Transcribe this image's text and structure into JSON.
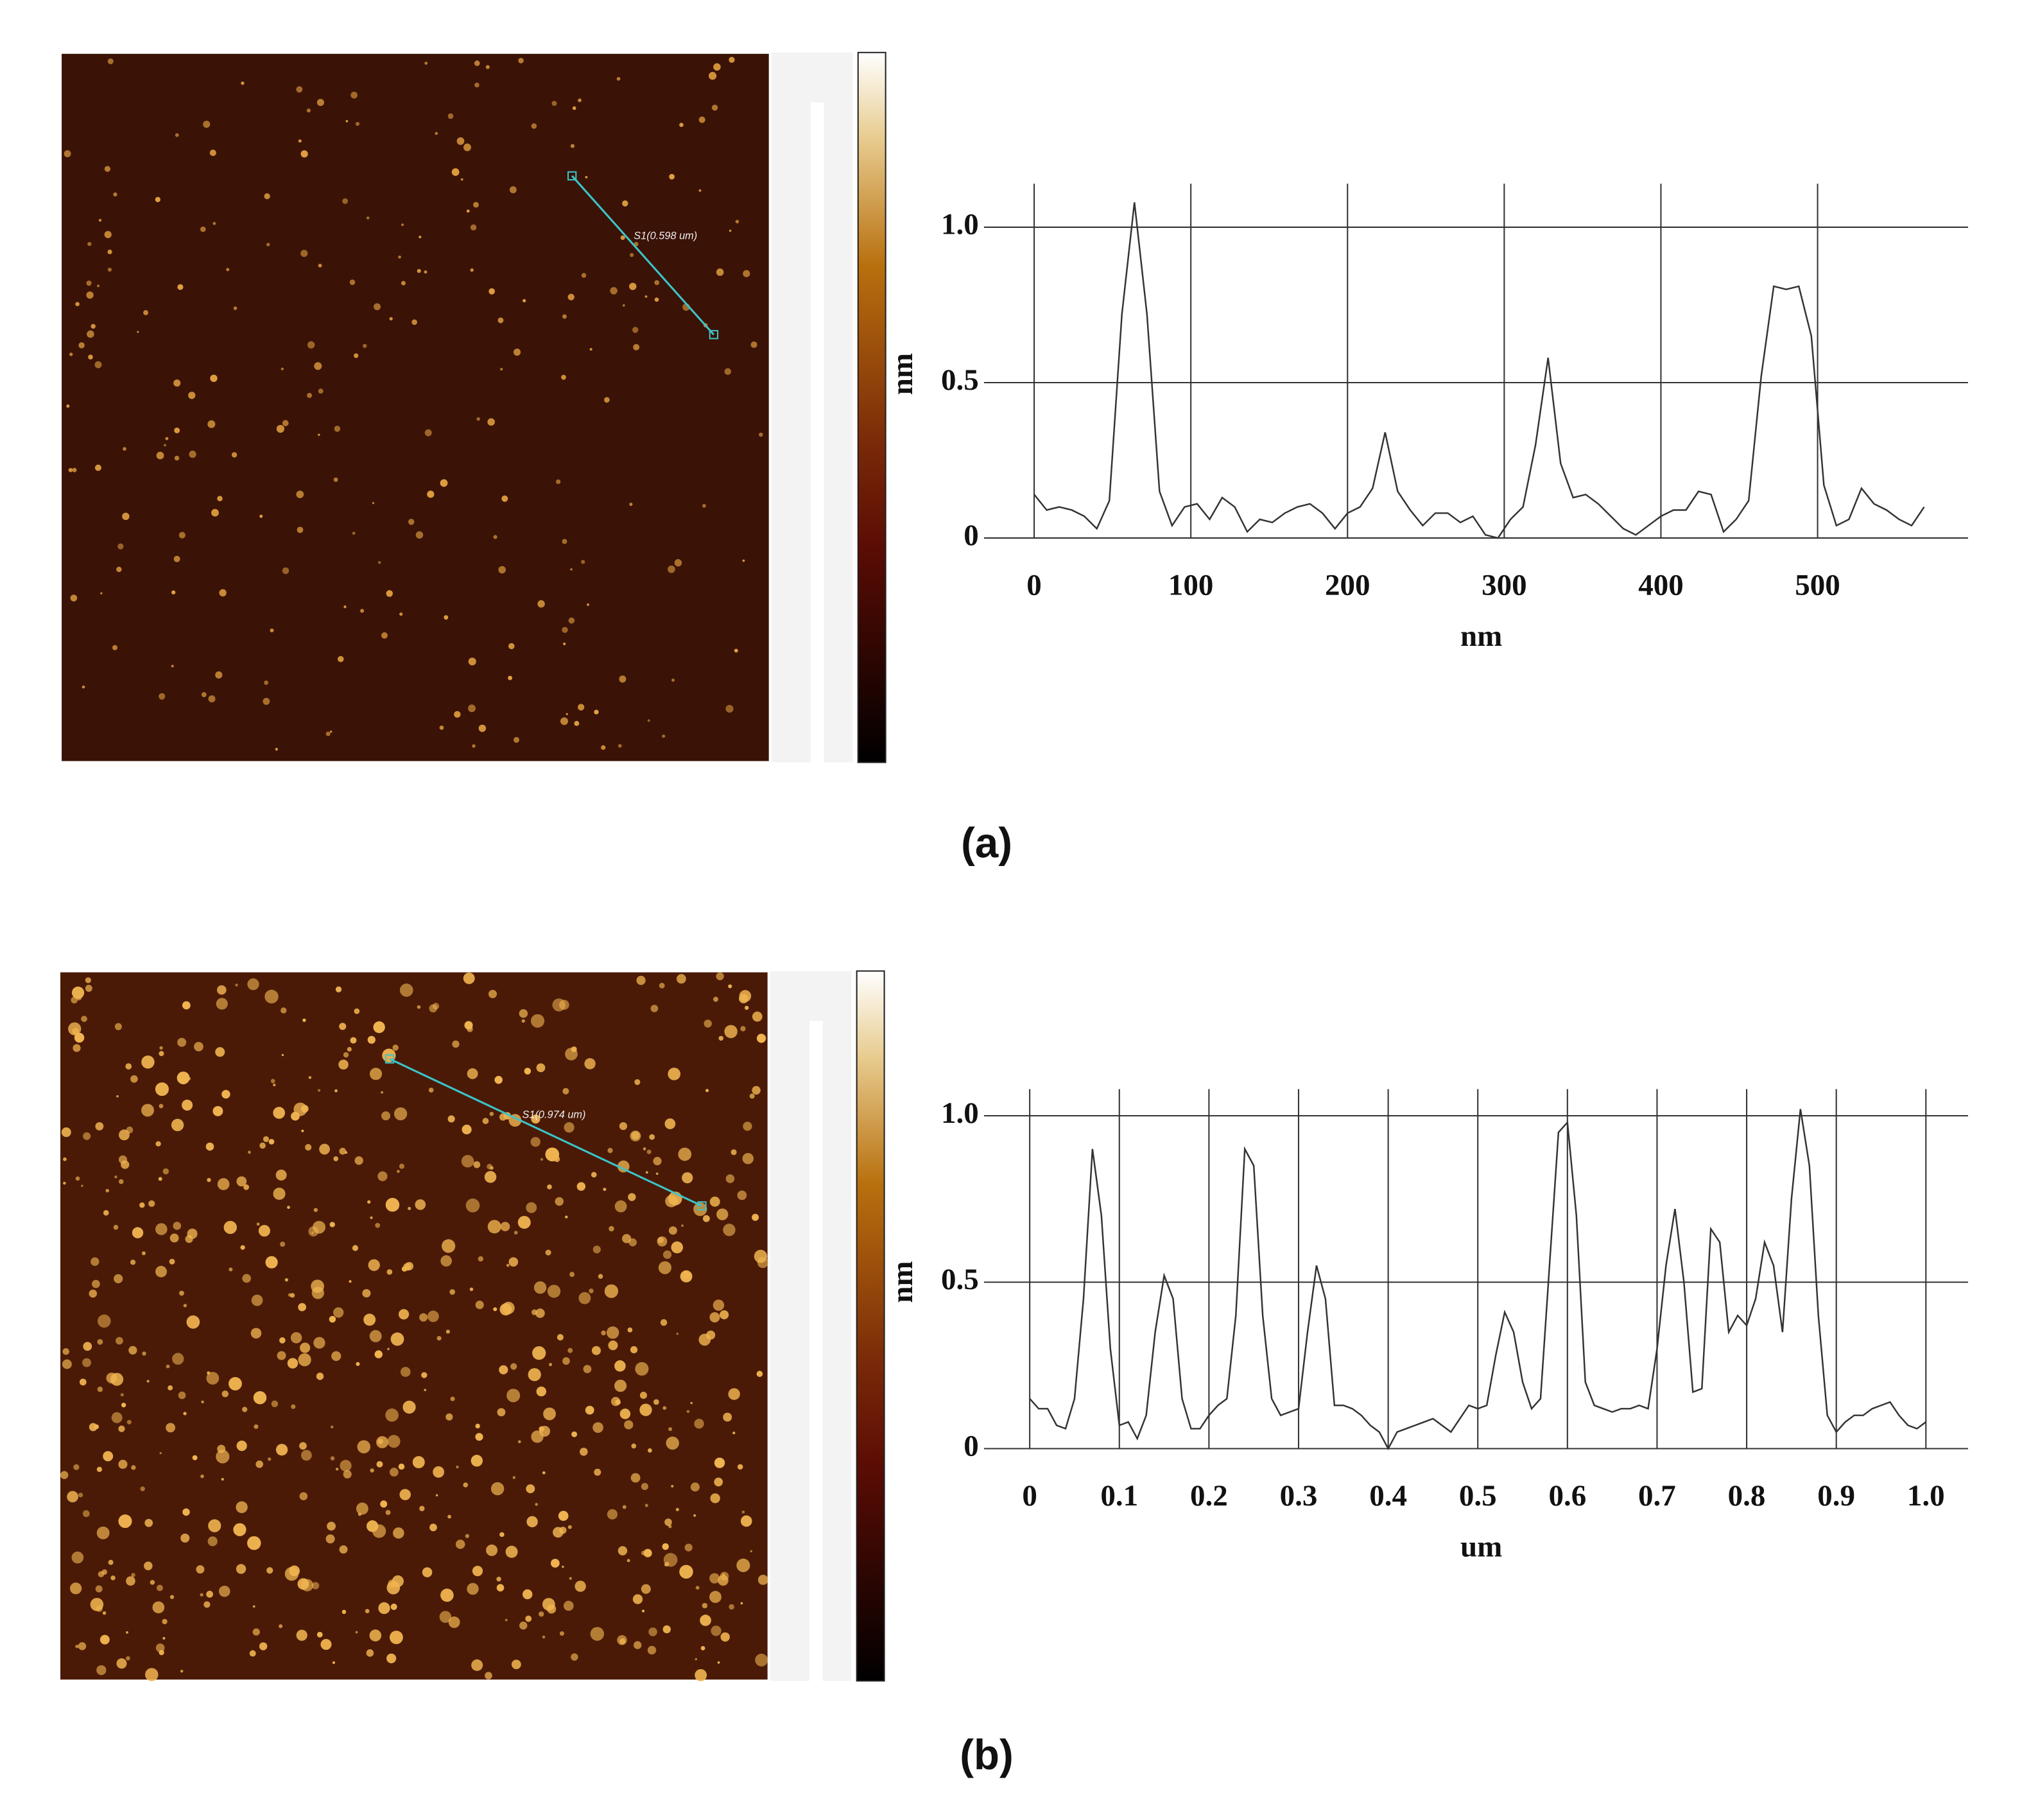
{
  "chart_data": [
    {
      "type": "line",
      "panel_label": "(a)",
      "annotation": "S1(0.598 um)",
      "xlabel": "nm",
      "ylabel": "nm",
      "color": "#333333",
      "grid": true,
      "xlim": [
        -32,
        596
      ],
      "ylim": [
        0,
        1.14
      ],
      "xticks": [
        0,
        100,
        200,
        300,
        400,
        500
      ],
      "yticks": [
        0,
        0.5,
        {
          "value": 1,
          "label": "1.0"
        }
      ],
      "x": [
        0,
        8,
        16,
        24,
        32,
        40,
        48,
        56,
        64,
        72,
        80,
        88,
        96,
        104,
        112,
        120,
        128,
        136,
        144,
        152,
        160,
        168,
        176,
        184,
        192,
        200,
        208,
        216,
        224,
        232,
        240,
        248,
        256,
        264,
        272,
        280,
        288,
        296,
        304,
        312,
        320,
        328,
        336,
        344,
        352,
        360,
        368,
        376,
        384,
        392,
        400,
        408,
        416,
        424,
        432,
        440,
        448,
        456,
        464,
        472,
        480,
        488,
        496,
        504,
        512,
        520,
        528,
        536,
        544,
        552,
        560,
        568
      ],
      "values": [
        0.14,
        0.09,
        0.1,
        0.09,
        0.07,
        0.03,
        0.12,
        0.72,
        1.08,
        0.72,
        0.15,
        0.04,
        0.1,
        0.11,
        0.06,
        0.13,
        0.1,
        0.02,
        0.06,
        0.05,
        0.08,
        0.1,
        0.11,
        0.08,
        0.03,
        0.08,
        0.1,
        0.16,
        0.34,
        0.15,
        0.09,
        0.04,
        0.08,
        0.08,
        0.05,
        0.07,
        0.01,
        0.0,
        0.06,
        0.1,
        0.3,
        0.58,
        0.24,
        0.13,
        0.14,
        0.11,
        0.07,
        0.03,
        0.01,
        0.04,
        0.07,
        0.09,
        0.09,
        0.15,
        0.14,
        0.02,
        0.06,
        0.12,
        0.52,
        0.81,
        0.8,
        0.81,
        0.65,
        0.17,
        0.04,
        0.06,
        0.16,
        0.11,
        0.09,
        0.06,
        0.04,
        0.1
      ]
    },
    {
      "type": "line",
      "panel_label": "(b)",
      "annotation": "S1(0.974 um)",
      "xlabel": "um",
      "ylabel": "nm",
      "color": "#333333",
      "grid": true,
      "xlim": [
        -0.051,
        1.047
      ],
      "ylim": [
        0,
        1.08
      ],
      "xticks": [
        0,
        0.1,
        0.2,
        0.3,
        0.4,
        0.5,
        0.6,
        0.7,
        0.8,
        0.9,
        {
          "value": 1,
          "label": "1.0"
        }
      ],
      "yticks": [
        0,
        0.5,
        {
          "value": 1,
          "label": "1.0"
        }
      ],
      "x": [
        0,
        0.01,
        0.02,
        0.03,
        0.04,
        0.05,
        0.06,
        0.07,
        0.08,
        0.09,
        0.1,
        0.11,
        0.12,
        0.13,
        0.14,
        0.15,
        0.16,
        0.17,
        0.18,
        0.19,
        0.2,
        0.21,
        0.22,
        0.23,
        0.24,
        0.25,
        0.26,
        0.27,
        0.28,
        0.29,
        0.3,
        0.31,
        0.32,
        0.33,
        0.34,
        0.35,
        0.36,
        0.37,
        0.38,
        0.39,
        0.4,
        0.41,
        0.42,
        0.43,
        0.44,
        0.45,
        0.46,
        0.47,
        0.48,
        0.49,
        0.5,
        0.51,
        0.52,
        0.53,
        0.54,
        0.55,
        0.56,
        0.57,
        0.58,
        0.59,
        0.6,
        0.61,
        0.62,
        0.63,
        0.64,
        0.65,
        0.66,
        0.67,
        0.68,
        0.69,
        0.7,
        0.71,
        0.72,
        0.73,
        0.74,
        0.75,
        0.76,
        0.77,
        0.78,
        0.79,
        0.8,
        0.81,
        0.82,
        0.83,
        0.84,
        0.85,
        0.86,
        0.87,
        0.88,
        0.89,
        0.9,
        0.91,
        0.92,
        0.93,
        0.94,
        0.95,
        0.96,
        0.97,
        0.98,
        0.99,
        1.0
      ],
      "values": [
        0.15,
        0.12,
        0.12,
        0.07,
        0.06,
        0.15,
        0.45,
        0.9,
        0.7,
        0.3,
        0.07,
        0.08,
        0.03,
        0.1,
        0.35,
        0.52,
        0.45,
        0.15,
        0.06,
        0.06,
        0.1,
        0.13,
        0.15,
        0.4,
        0.9,
        0.85,
        0.4,
        0.15,
        0.1,
        0.11,
        0.12,
        0.35,
        0.55,
        0.45,
        0.13,
        0.13,
        0.12,
        0.1,
        0.07,
        0.05,
        0.0,
        0.05,
        0.06,
        0.07,
        0.08,
        0.09,
        0.07,
        0.05,
        0.09,
        0.13,
        0.12,
        0.13,
        0.28,
        0.41,
        0.35,
        0.2,
        0.12,
        0.15,
        0.55,
        0.95,
        0.98,
        0.7,
        0.2,
        0.13,
        0.12,
        0.11,
        0.12,
        0.12,
        0.13,
        0.12,
        0.3,
        0.55,
        0.72,
        0.5,
        0.17,
        0.18,
        0.66,
        0.62,
        0.35,
        0.4,
        0.37,
        0.45,
        0.62,
        0.55,
        0.35,
        0.75,
        1.02,
        0.85,
        0.4,
        0.1,
        0.05,
        0.08,
        0.1,
        0.1,
        0.12,
        0.13,
        0.14,
        0.1,
        0.07,
        0.06,
        0.08
      ]
    }
  ]
}
